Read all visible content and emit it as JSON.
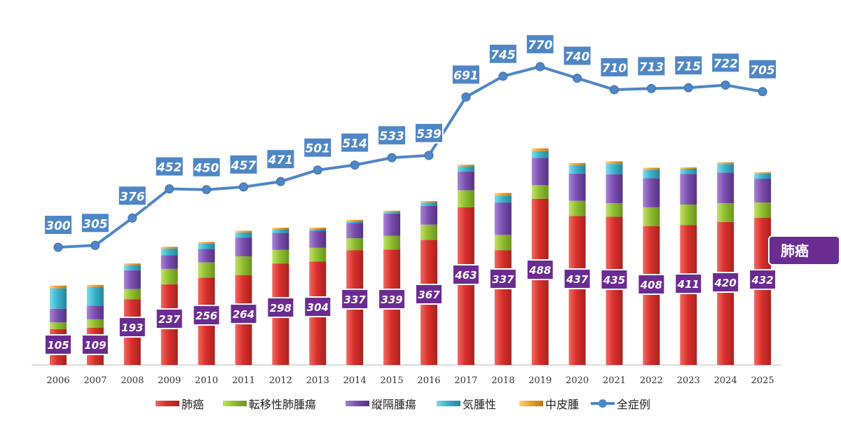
{
  "chart_data": {
    "type": "bar",
    "stacked": true,
    "categories": [
      "2006",
      "2007",
      "2008",
      "2009",
      "2010",
      "2011",
      "2012",
      "2013",
      "2014",
      "2015",
      "2016",
      "2017",
      "2018",
      "2019",
      "2020",
      "2021",
      "2022",
      "2023",
      "2024",
      "2025"
    ],
    "series": [
      {
        "name": "肺癌",
        "color": "#d9302c",
        "values": [
          105,
          109,
          193,
          237,
          256,
          264,
          298,
          304,
          337,
          339,
          367,
          463,
          337,
          488,
          437,
          435,
          408,
          411,
          420,
          432
        ]
      },
      {
        "name": "転移性肺腫瘍",
        "color": "#8fbf2f",
        "values": [
          20,
          25,
          30,
          45,
          45,
          55,
          40,
          40,
          35,
          40,
          45,
          50,
          45,
          40,
          45,
          40,
          55,
          60,
          55,
          45
        ]
      },
      {
        "name": "縦隔腫瘍",
        "color": "#7a4fb0",
        "values": [
          40,
          40,
          55,
          40,
          40,
          55,
          50,
          50,
          45,
          65,
          55,
          55,
          95,
          80,
          80,
          85,
          85,
          90,
          90,
          70
        ]
      },
      {
        "name": "気腫性",
        "color": "#3bb3cc",
        "values": [
          60,
          55,
          15,
          20,
          15,
          15,
          10,
          5,
          5,
          5,
          10,
          15,
          20,
          20,
          25,
          30,
          25,
          15,
          25,
          15
        ]
      },
      {
        "name": "中皮腫",
        "color": "#f0a02a",
        "values": [
          8,
          6,
          5,
          5,
          5,
          5,
          5,
          4,
          4,
          4,
          4,
          5,
          8,
          8,
          6,
          8,
          6,
          4,
          5,
          4
        ]
      },
      {
        "name": "全症例",
        "type": "line",
        "color": "#4f86c6",
        "values": [
          300,
          305,
          376,
          452,
          450,
          457,
          471,
          501,
          514,
          533,
          539,
          691,
          745,
          770,
          740,
          710,
          713,
          715,
          722,
          705
        ]
      }
    ],
    "xlabel": "",
    "ylabel": "",
    "ylim": [
      0,
      900
    ],
    "grid": false,
    "legend_position": "bottom"
  },
  "callout": {
    "label": "肺癌",
    "color": "#6b2c91"
  }
}
